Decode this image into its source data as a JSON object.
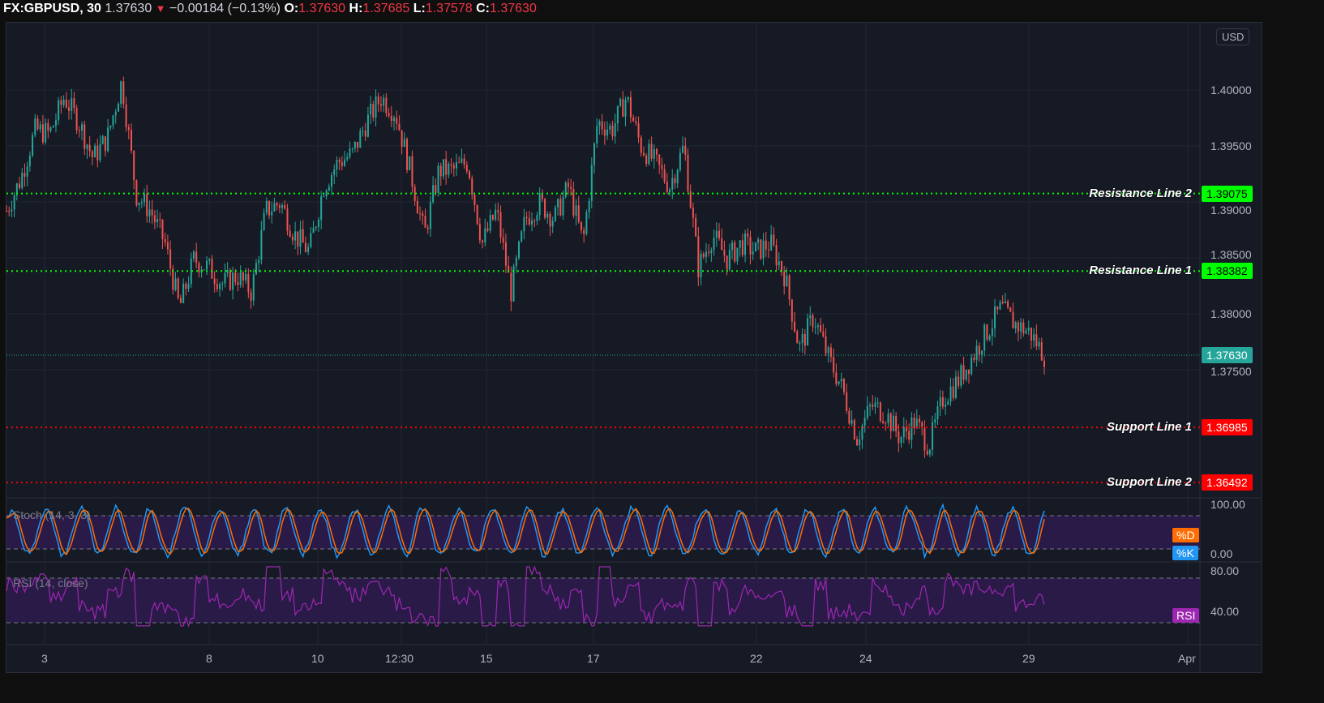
{
  "header": {
    "symbol": "FX:GBPUSD, 30",
    "last": "1.37630",
    "change": "−0.00184 (−0.13%)",
    "o_label": "O:",
    "o": "1.37630",
    "h_label": "H:",
    "h": "1.37685",
    "l_label": "L:",
    "l": "1.37578",
    "c_label": "C:",
    "c": "1.37630"
  },
  "currency_button": "USD",
  "price_axis": [
    "1.40000",
    "1.39500",
    "1.39000",
    "1.38500",
    "1.38000",
    "1.37500"
  ],
  "current_price": {
    "value": "1.37630",
    "color": "#26a69a"
  },
  "lines": [
    {
      "label": "Resistance Line 2",
      "price": "1.39075",
      "color": "#00ff00"
    },
    {
      "label": "Resistance Line 1",
      "price": "1.38382",
      "color": "#00ff00"
    },
    {
      "label": "Support Line 1",
      "price": "1.36985",
      "color": "#ff0000"
    },
    {
      "label": "Support Line 2",
      "price": "1.36492",
      "color": "#ff0000"
    }
  ],
  "stoch": {
    "title": "Stoch (14, 3, 3)",
    "axis": [
      "100.00",
      "0.00"
    ],
    "d_label": "%D",
    "k_label": "%K",
    "d_color": "#ff6d00",
    "k_color": "#2196f3"
  },
  "rsi": {
    "title": "RSI (14, close)",
    "axis": [
      "80.00",
      "40.00"
    ],
    "label": "RSI",
    "color": "#9c27b0"
  },
  "time_axis": [
    "3",
    "8",
    "10",
    "12:30",
    "15",
    "17",
    "22",
    "24",
    "29",
    "Apr"
  ],
  "chart_data": {
    "type": "candlestick",
    "symbol": "GBPUSD",
    "interval": "30",
    "close_path": [
      1.3892,
      1.3921,
      1.39645,
      1.39609,
      1.39935,
      1.39717,
      1.39391,
      1.39572,
      1.4008,
      1.39065,
      1.3892,
      1.3863,
      1.38051,
      1.38486,
      1.38413,
      1.38268,
      1.38341,
      1.38196,
      1.3892,
      1.38993,
      1.38703,
      1.38558,
      1.39138,
      1.39355,
      1.39428,
      1.39717,
      1.39935,
      1.3979,
      1.39283,
      1.38703,
      1.39283,
      1.39283,
      1.39355,
      1.3863,
      1.3892,
      1.38196,
      1.38848,
      1.38993,
      1.38848,
      1.39138,
      1.3863,
      1.39717,
      1.39645,
      1.39935,
      1.395,
      1.39355,
      1.39138,
      1.395,
      1.38413,
      1.38703,
      1.38486,
      1.3863,
      1.38558,
      1.3863,
      1.38341,
      1.37688,
      1.37978,
      1.37616,
      1.37326,
      1.36891,
      1.37181,
      1.37109,
      1.36891,
      1.37036,
      1.36819,
      1.37254,
      1.37399,
      1.37616,
      1.37833,
      1.38051,
      1.37906,
      1.37833,
      1.3763
    ],
    "up_color": "#26a69a",
    "down_color": "#ef5350"
  }
}
